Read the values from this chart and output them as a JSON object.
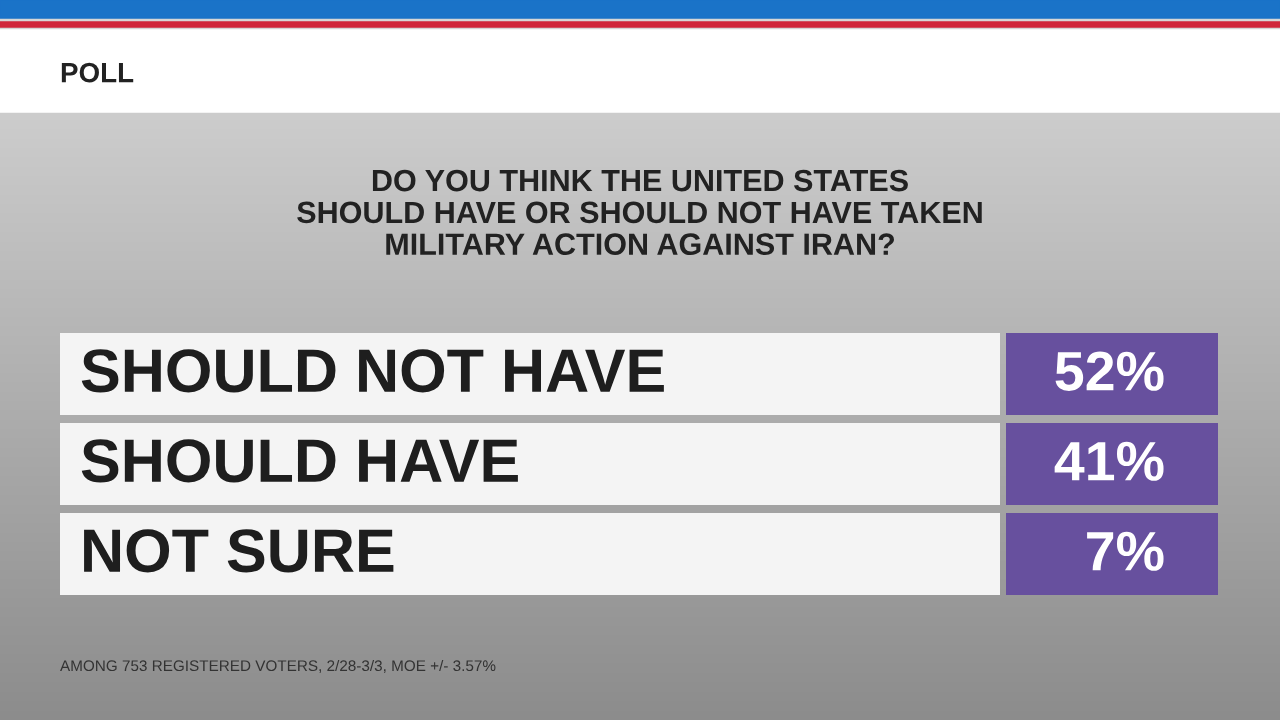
{
  "chart_data": {
    "type": "other",
    "subtitle": "POLL",
    "title": "DO YOU THINK THE UNITED STATES\nSHOULD HAVE OR SHOULD NOT HAVE TAKEN\nMILITARY ACTION AGAINST IRAN?",
    "categories": [
      "SHOULD NOT HAVE",
      "SHOULD HAVE",
      "NOT SURE"
    ],
    "values": [
      52,
      41,
      7
    ],
    "value_labels": [
      "52%",
      "41%",
      "7%"
    ],
    "color": "#67509e",
    "annotations": [
      "AMONG 753 REGISTERED VOTERS, 2/28-3/3, MOE +/- 3.57%"
    ]
  }
}
